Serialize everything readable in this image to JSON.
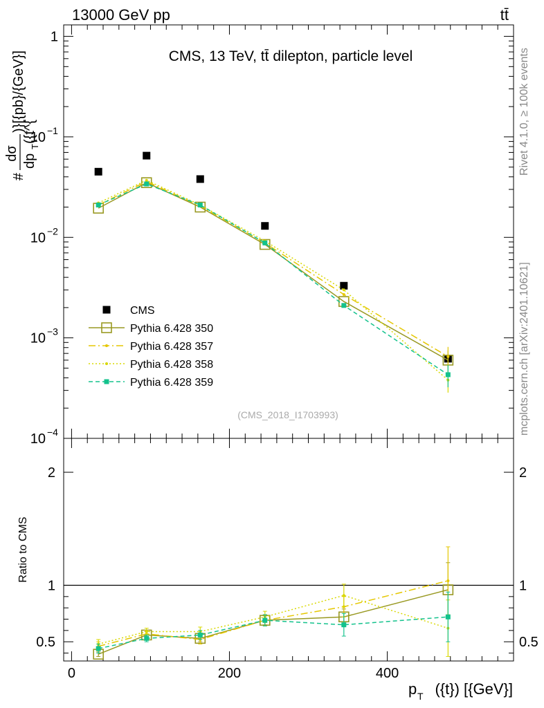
{
  "header": {
    "left": "13000 GeV pp",
    "right": "tt̄"
  },
  "side_labels": {
    "rivet": "Rivet 4.1.0, ≥ 100k events",
    "mcplots": "mcplots.cern.ch [arXiv:2401.10621]"
  },
  "chart_data": [
    {
      "type": "line",
      "panel": "main",
      "title": "CMS, 13 TeV, tt̄ dilepton, particle level",
      "watermark": "(CMS_2018_I1703993)",
      "ylabel_num": "dσ",
      "ylabel_den": "dp",
      "ylabel_den_sub": "T",
      "ylabel_den_tail": "({t^{",
      "ylabel_prefix": "#",
      "ylabel_suffix": ")}[{pb}/{GeV}]",
      "yscale": "log",
      "ylim": [
        0.0001,
        1.3
      ],
      "xlim": [
        -10,
        560
      ],
      "ytick_labels": [
        {
          "base": "10",
          "exp": "−4",
          "value": 0.0001
        },
        {
          "base": "10",
          "exp": "−3",
          "value": 0.001
        },
        {
          "base": "10",
          "exp": "−2",
          "value": 0.01
        },
        {
          "base": "10",
          "exp": "−1",
          "value": 0.1
        },
        {
          "base": "1",
          "exp": "",
          "value": 1
        }
      ],
      "x": [
        34,
        95,
        163,
        245,
        345,
        477
      ],
      "series": [
        {
          "name": "CMS",
          "style": "data",
          "color": "#000000",
          "values": [
            0.045,
            0.065,
            0.038,
            0.013,
            0.0033,
            0.00062
          ]
        },
        {
          "name": "Pythia 6.428 350",
          "style": "open-square",
          "color": "#999922",
          "values": [
            0.0195,
            0.035,
            0.02,
            0.0085,
            0.0023,
            0.0006
          ]
        },
        {
          "name": "Pythia 6.428 357",
          "style": "dashdot",
          "color": "#e5c700",
          "values": [
            0.021,
            0.036,
            0.0205,
            0.0088,
            0.0027,
            0.00065
          ]
        },
        {
          "name": "Pythia 6.428 358",
          "style": "dotted",
          "color": "#d8d800",
          "values": [
            0.022,
            0.037,
            0.021,
            0.0092,
            0.003,
            0.00038
          ]
        },
        {
          "name": "Pythia 6.428 359",
          "style": "dashed",
          "color": "#13c28c",
          "values": [
            0.021,
            0.034,
            0.021,
            0.0088,
            0.0021,
            0.00043
          ]
        }
      ]
    },
    {
      "type": "line",
      "panel": "ratio",
      "ylabel": "Ratio to CMS",
      "xlabel_main": "p",
      "xlabel_sub": "T",
      "xlabel_tail": "({t}) [{GeV}]",
      "ylim": [
        0.33,
        2.3
      ],
      "xlim": [
        -10,
        560
      ],
      "yticks": [
        0.5,
        1,
        2
      ],
      "ytick_labels": [
        "0.5",
        "1",
        "2"
      ],
      "xticks": [
        0,
        200,
        400
      ],
      "xtick_labels": [
        "0",
        "200",
        "400"
      ],
      "x": [
        34,
        95,
        163,
        245,
        345,
        477
      ],
      "series": [
        {
          "name": "Pythia 6.428 350",
          "style": "open-square",
          "color": "#999922",
          "values": [
            0.39,
            0.56,
            0.53,
            0.69,
            0.72,
            0.96
          ],
          "errors": [
            0.02,
            0.03,
            0.03,
            0.04,
            0.07,
            0.24
          ]
        },
        {
          "name": "Pythia 6.428 357",
          "style": "dashdot",
          "color": "#e5c700",
          "values": [
            0.46,
            0.57,
            0.52,
            0.69,
            0.81,
            1.04
          ],
          "errors": [
            0.04,
            0.03,
            0.04,
            0.05,
            0.09,
            0.3
          ]
        },
        {
          "name": "Pythia 6.428 358",
          "style": "dotted",
          "color": "#d8d800",
          "values": [
            0.48,
            0.59,
            0.59,
            0.72,
            0.91,
            0.62
          ],
          "errors": [
            0.04,
            0.03,
            0.04,
            0.05,
            0.1,
            0.25
          ]
        },
        {
          "name": "Pythia 6.428 359",
          "style": "dashed",
          "color": "#13c28c",
          "values": [
            0.44,
            0.53,
            0.56,
            0.69,
            0.65,
            0.72
          ],
          "errors": [
            0.04,
            0.03,
            0.04,
            0.05,
            0.1,
            0.22
          ]
        }
      ]
    }
  ]
}
